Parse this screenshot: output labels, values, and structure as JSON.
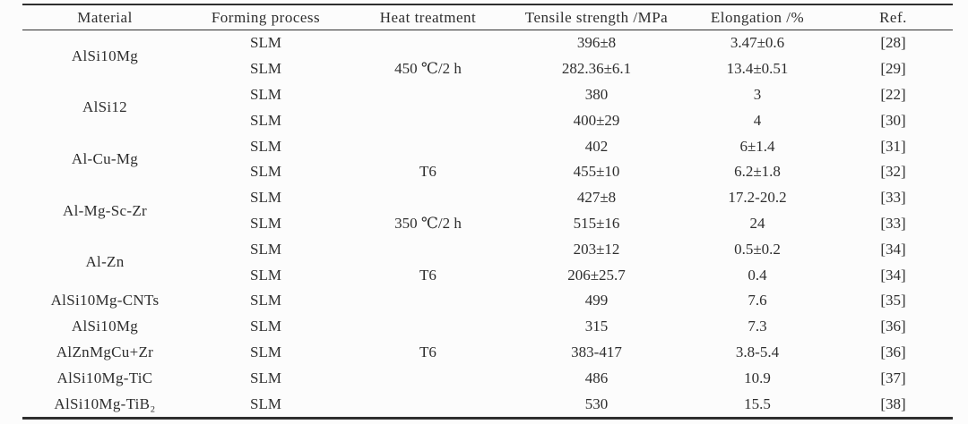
{
  "page": {
    "background_color": "#fcfcfc",
    "text_color": "#2e2e2e",
    "rule_color": "#2f2f2f"
  },
  "table": {
    "columns": [
      {
        "key": "material",
        "label": "Material"
      },
      {
        "key": "process",
        "label": "Forming process"
      },
      {
        "key": "heat",
        "label": "Heat treatment"
      },
      {
        "key": "tensile",
        "label": "Tensile strength /MPa"
      },
      {
        "key": "elongation",
        "label": "Elongation /%"
      },
      {
        "key": "ref",
        "label": "Ref."
      }
    ],
    "groups": [
      {
        "material": "AlSi10Mg",
        "rows": [
          {
            "process": "SLM",
            "heat": "",
            "tensile": "396±8",
            "elongation": "3.47±0.6",
            "ref": "[28]"
          },
          {
            "process": "SLM",
            "heat": "450 ℃/2 h",
            "tensile": "282.36±6.1",
            "elongation": "13.4±0.51",
            "ref": "[29]"
          }
        ]
      },
      {
        "material": "AlSi12",
        "rows": [
          {
            "process": "SLM",
            "heat": "",
            "tensile": "380",
            "elongation": "3",
            "ref": "[22]"
          },
          {
            "process": "SLM",
            "heat": "",
            "tensile": "400±29",
            "elongation": "4",
            "ref": "[30]"
          }
        ]
      },
      {
        "material": "Al-Cu-Mg",
        "rows": [
          {
            "process": "SLM",
            "heat": "",
            "tensile": "402",
            "elongation": "6±1.4",
            "ref": "[31]"
          },
          {
            "process": "SLM",
            "heat": "T6",
            "tensile": "455±10",
            "elongation": "6.2±1.8",
            "ref": "[32]"
          }
        ]
      },
      {
        "material": "Al-Mg-Sc-Zr",
        "rows": [
          {
            "process": "SLM",
            "heat": "",
            "tensile": "427±8",
            "elongation": "17.2-20.2",
            "ref": "[33]"
          },
          {
            "process": "SLM",
            "heat": "350 ℃/2 h",
            "tensile": "515±16",
            "elongation": "24",
            "ref": "[33]"
          }
        ]
      },
      {
        "material": "Al-Zn",
        "rows": [
          {
            "process": "SLM",
            "heat": "",
            "tensile": "203±12",
            "elongation": "0.5±0.2",
            "ref": "[34]"
          },
          {
            "process": "SLM",
            "heat": "T6",
            "tensile": "206±25.7",
            "elongation": "0.4",
            "ref": "[34]"
          }
        ]
      },
      {
        "material": "AlSi10Mg-CNTs",
        "rows": [
          {
            "process": "SLM",
            "heat": "",
            "tensile": "499",
            "elongation": "7.6",
            "ref": "[35]"
          }
        ]
      },
      {
        "material": "AlSi10Mg",
        "rows": [
          {
            "process": "SLM",
            "heat": "",
            "tensile": "315",
            "elongation": "7.3",
            "ref": "[36]"
          }
        ]
      },
      {
        "material": "AlZnMgCu+Zr",
        "rows": [
          {
            "process": "SLM",
            "heat": "T6",
            "tensile": "383-417",
            "elongation": "3.8-5.4",
            "ref": "[36]"
          }
        ]
      },
      {
        "material": "AlSi10Mg-TiC",
        "rows": [
          {
            "process": "SLM",
            "heat": "",
            "tensile": "486",
            "elongation": "10.9",
            "ref": "[37]"
          }
        ]
      },
      {
        "material": "AlSi10Mg-TiB₂",
        "rows": [
          {
            "process": "SLM",
            "heat": "",
            "tensile": "530",
            "elongation": "15.5",
            "ref": "[38]"
          }
        ]
      }
    ]
  }
}
